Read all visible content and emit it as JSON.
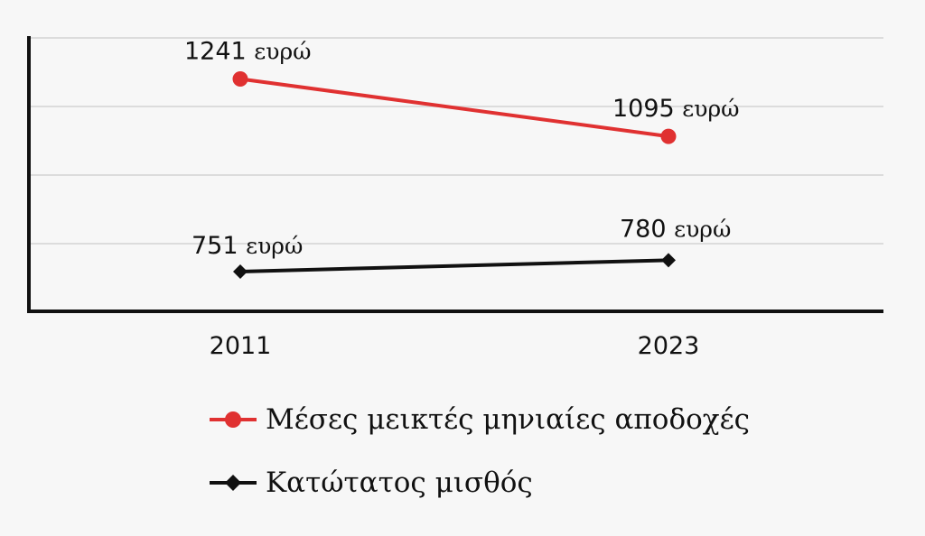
{
  "chart_data": {
    "type": "line",
    "categories": [
      "2011",
      "2023"
    ],
    "ylim": [
      650,
      1350
    ],
    "grid": true,
    "unit": "ευρώ",
    "series": [
      {
        "name": "Μέσες μεικτές μηνιαίες αποδοχές",
        "values": [
          1241,
          1095
        ],
        "color": "#e03131",
        "marker": "circle"
      },
      {
        "name": "Κατώτατος μισθός",
        "values": [
          751,
          780
        ],
        "color": "#111111",
        "marker": "diamond"
      }
    ]
  }
}
